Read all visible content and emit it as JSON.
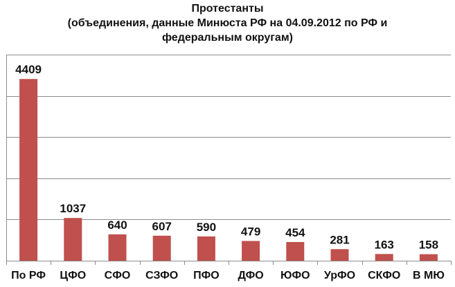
{
  "chart_data": {
    "type": "bar",
    "title_lines": [
      "Протестанты",
      "(объединения, данные Минюста РФ на 04.09.2012 по РФ и",
      "федеральным округам)"
    ],
    "categories": [
      "По РФ",
      "ЦФО",
      "СФО",
      "СЗФО",
      "ПФО",
      "ДФО",
      "ЮФО",
      "УрФО",
      "СКФО",
      "В МЮ"
    ],
    "values": [
      4409,
      1037,
      640,
      607,
      590,
      479,
      454,
      281,
      163,
      158
    ],
    "data_labels": [
      "4409",
      "1037",
      "640",
      "607",
      "590",
      "479",
      "454",
      "281",
      "163",
      "158"
    ],
    "ylim": [
      0,
      5000
    ],
    "gridlines": [
      1000,
      2000,
      3000,
      4000,
      5000
    ],
    "grid": true,
    "legend": "none",
    "colors": {
      "bar": "#c0504d",
      "grid": "#8c8c8c",
      "axis": "#8c8c8c"
    }
  }
}
